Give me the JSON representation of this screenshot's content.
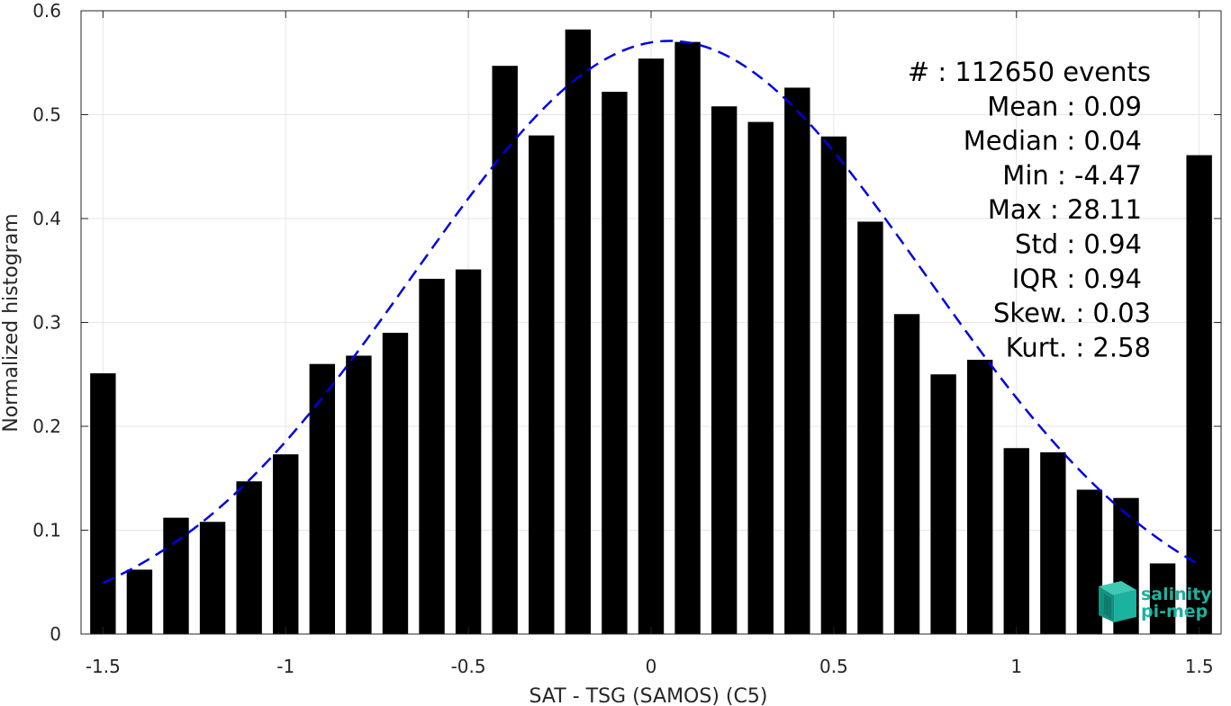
{
  "chart_data": {
    "type": "bar",
    "xlabel": "SAT - TSG (SAMOS) (C5)",
    "ylabel": "Normalized histogram",
    "xlim": [
      -1.56,
      1.56
    ],
    "ylim": [
      0,
      0.6
    ],
    "grid": true,
    "x_ticks": [
      -1.5,
      -1,
      -0.5,
      0,
      0.5,
      1,
      1.5
    ],
    "x_tick_labels": [
      "-1.5",
      "-1",
      "-0.5",
      "0",
      "0.5",
      "1",
      "1.5"
    ],
    "y_ticks": [
      0,
      0.1,
      0.2,
      0.3,
      0.4,
      0.5,
      0.6
    ],
    "y_tick_labels": [
      "0",
      "0.1",
      "0.2",
      "0.3",
      "0.4",
      "0.5",
      "0.6"
    ],
    "bar_color": "#000000",
    "fit_color": "#0000e6",
    "bar_width": 0.07,
    "x": [
      -1.5,
      -1.4,
      -1.3,
      -1.2,
      -1.1,
      -1.0,
      -0.9,
      -0.8,
      -0.7,
      -0.6,
      -0.5,
      -0.4,
      -0.3,
      -0.2,
      -0.1,
      0.0,
      0.1,
      0.2,
      0.3,
      0.4,
      0.5,
      0.6,
      0.7,
      0.8,
      0.9,
      1.0,
      1.1,
      1.2,
      1.3,
      1.4,
      1.5
    ],
    "values": [
      0.251,
      0.062,
      0.112,
      0.108,
      0.147,
      0.173,
      0.26,
      0.268,
      0.29,
      0.342,
      0.351,
      0.547,
      0.48,
      0.582,
      0.522,
      0.554,
      0.57,
      0.508,
      0.493,
      0.526,
      0.479,
      0.397,
      0.308,
      0.25,
      0.264,
      0.179,
      0.175,
      0.139,
      0.131,
      0.068,
      0.461
    ],
    "fit": {
      "type": "gaussian",
      "style": "dashed",
      "mean": 0.05,
      "std": 0.7,
      "peak": 0.571,
      "x_range": [
        -1.5,
        1.5
      ]
    },
    "stats": [
      "#  : 112650 events",
      "Mean : 0.09",
      "Median : 0.04",
      "Min : -4.47",
      "Max : 28.11",
      "Std : 0.94",
      "IQR : 0.94",
      "Skew. : 0.03",
      "Kurt. : 2.58"
    ]
  },
  "logo": {
    "line1": "salinity",
    "line2": "pi-mep",
    "color": "#1bb3a0"
  }
}
